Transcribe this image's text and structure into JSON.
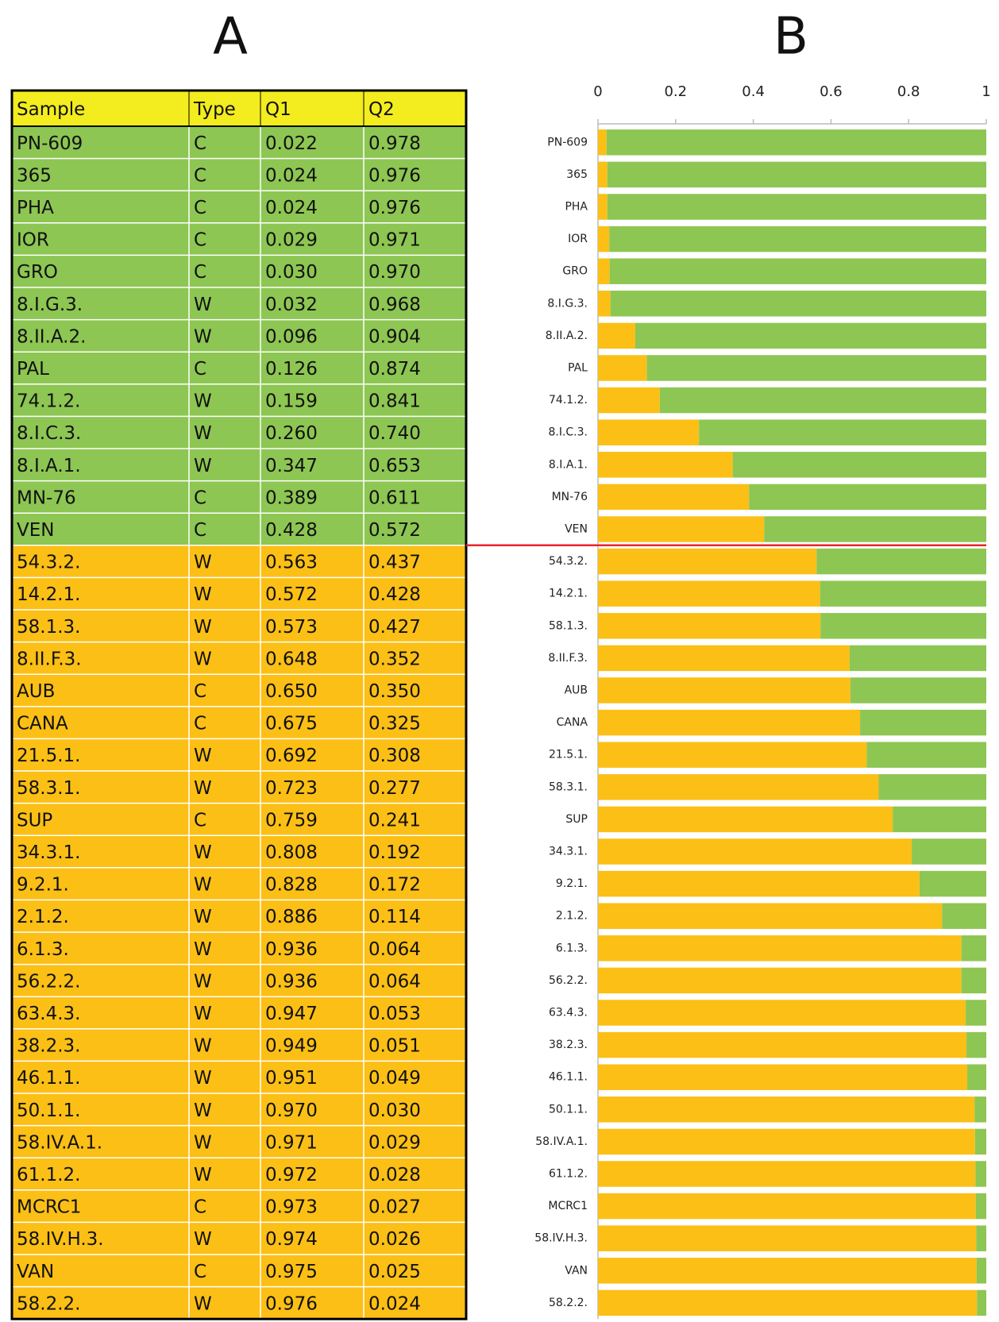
{
  "panel_labels": [
    "A",
    "B"
  ],
  "table": {
    "header": [
      "Sample",
      "Type",
      "Q1",
      "Q2"
    ],
    "header_color": "#f3ec1e",
    "groups": [
      {
        "color": "#8dc653",
        "rows": [
          [
            "PN-609",
            "C",
            "0.022",
            "0.978"
          ],
          [
            "365",
            "C",
            "0.024",
            "0.976"
          ],
          [
            "PHA",
            "C",
            "0.024",
            "0.976"
          ],
          [
            "IOR",
            "C",
            "0.029",
            "0.971"
          ],
          [
            "GRO",
            "C",
            "0.030",
            "0.970"
          ],
          [
            "8.I.G.3.",
            "W",
            "0.032",
            "0.968"
          ],
          [
            "8.II.A.2.",
            "W",
            "0.096",
            "0.904"
          ],
          [
            "PAL",
            "C",
            "0.126",
            "0.874"
          ],
          [
            "74.1.2.",
            "W",
            "0.159",
            "0.841"
          ],
          [
            "8.I.C.3.",
            "W",
            "0.260",
            "0.740"
          ],
          [
            "8.I.A.1.",
            "W",
            "0.347",
            "0.653"
          ],
          [
            "MN-76",
            "C",
            "0.389",
            "0.611"
          ],
          [
            "VEN",
            "C",
            "0.428",
            "0.572"
          ]
        ]
      },
      {
        "color": "#fbbf16",
        "rows": [
          [
            "54.3.2.",
            "W",
            "0.563",
            "0.437"
          ],
          [
            "14.2.1.",
            "W",
            "0.572",
            "0.428"
          ],
          [
            "58.1.3.",
            "W",
            "0.573",
            "0.427"
          ],
          [
            "8.II.F.3.",
            "W",
            "0.648",
            "0.352"
          ],
          [
            "AUB",
            "C",
            "0.650",
            "0.350"
          ],
          [
            "CANA",
            "C",
            "0.675",
            "0.325"
          ],
          [
            "21.5.1.",
            "W",
            "0.692",
            "0.308"
          ],
          [
            "58.3.1.",
            "W",
            "0.723",
            "0.277"
          ],
          [
            "SUP",
            "C",
            "0.759",
            "0.241"
          ],
          [
            "34.3.1.",
            "W",
            "0.808",
            "0.192"
          ],
          [
            "9.2.1.",
            "W",
            "0.828",
            "0.172"
          ],
          [
            "2.1.2.",
            "W",
            "0.886",
            "0.114"
          ],
          [
            "6.1.3.",
            "W",
            "0.936",
            "0.064"
          ],
          [
            "56.2.2.",
            "W",
            "0.936",
            "0.064"
          ],
          [
            "63.4.3.",
            "W",
            "0.947",
            "0.053"
          ],
          [
            "38.2.3.",
            "W",
            "0.949",
            "0.051"
          ],
          [
            "46.1.1.",
            "W",
            "0.951",
            "0.049"
          ],
          [
            "50.1.1.",
            "W",
            "0.970",
            "0.030"
          ],
          [
            "58.IV.A.1.",
            "W",
            "0.971",
            "0.029"
          ],
          [
            "61.1.2.",
            "W",
            "0.972",
            "0.028"
          ],
          [
            "MCRC1",
            "C",
            "0.973",
            "0.027"
          ],
          [
            "58.IV.H.3.",
            "W",
            "0.974",
            "0.026"
          ],
          [
            "VAN",
            "C",
            "0.975",
            "0.025"
          ],
          [
            "58.2.2.",
            "W",
            "0.976",
            "0.024"
          ]
        ]
      }
    ]
  },
  "chart_data": {
    "type": "stacked_barh",
    "categories": [
      "PN-609",
      "365",
      "PHA",
      "IOR",
      "GRO",
      "8.I.G.3.",
      "8.II.A.2.",
      "PAL",
      "74.1.2.",
      "8.I.C.3.",
      "8.I.A.1.",
      "MN-76",
      "VEN",
      "54.3.2.",
      "14.2.1.",
      "58.1.3.",
      "8.II.F.3.",
      "AUB",
      "CANA",
      "21.5.1.",
      "58.3.1.",
      "SUP",
      "34.3.1.",
      "9.2.1.",
      "2.1.2.",
      "6.1.3.",
      "56.2.2.",
      "63.4.3.",
      "38.2.3.",
      "46.1.1.",
      "50.1.1.",
      "58.IV.A.1.",
      "61.1.2.",
      "MCRC1",
      "58.IV.H.3.",
      "VAN",
      "58.2.2."
    ],
    "series": [
      {
        "color": "#fbbf16",
        "values": [
          0.022,
          0.024,
          0.024,
          0.029,
          0.03,
          0.032,
          0.096,
          0.126,
          0.159,
          0.26,
          0.347,
          0.389,
          0.428,
          0.563,
          0.572,
          0.573,
          0.648,
          0.65,
          0.675,
          0.692,
          0.723,
          0.759,
          0.808,
          0.828,
          0.886,
          0.936,
          0.936,
          0.947,
          0.949,
          0.951,
          0.97,
          0.971,
          0.972,
          0.973,
          0.974,
          0.975,
          0.976
        ]
      },
      {
        "color": "#8dc653",
        "values": [
          0.978,
          0.976,
          0.976,
          0.971,
          0.97,
          0.968,
          0.904,
          0.874,
          0.841,
          0.74,
          0.653,
          0.611,
          0.572,
          0.437,
          0.428,
          0.427,
          0.352,
          0.35,
          0.325,
          0.308,
          0.277,
          0.241,
          0.192,
          0.172,
          0.114,
          0.064,
          0.064,
          0.053,
          0.051,
          0.049,
          0.03,
          0.029,
          0.028,
          0.027,
          0.026,
          0.025,
          0.024
        ]
      }
    ],
    "xlim": [
      0,
      1
    ],
    "xticks": [
      0,
      0.2,
      0.4,
      0.6,
      0.8,
      1
    ]
  }
}
